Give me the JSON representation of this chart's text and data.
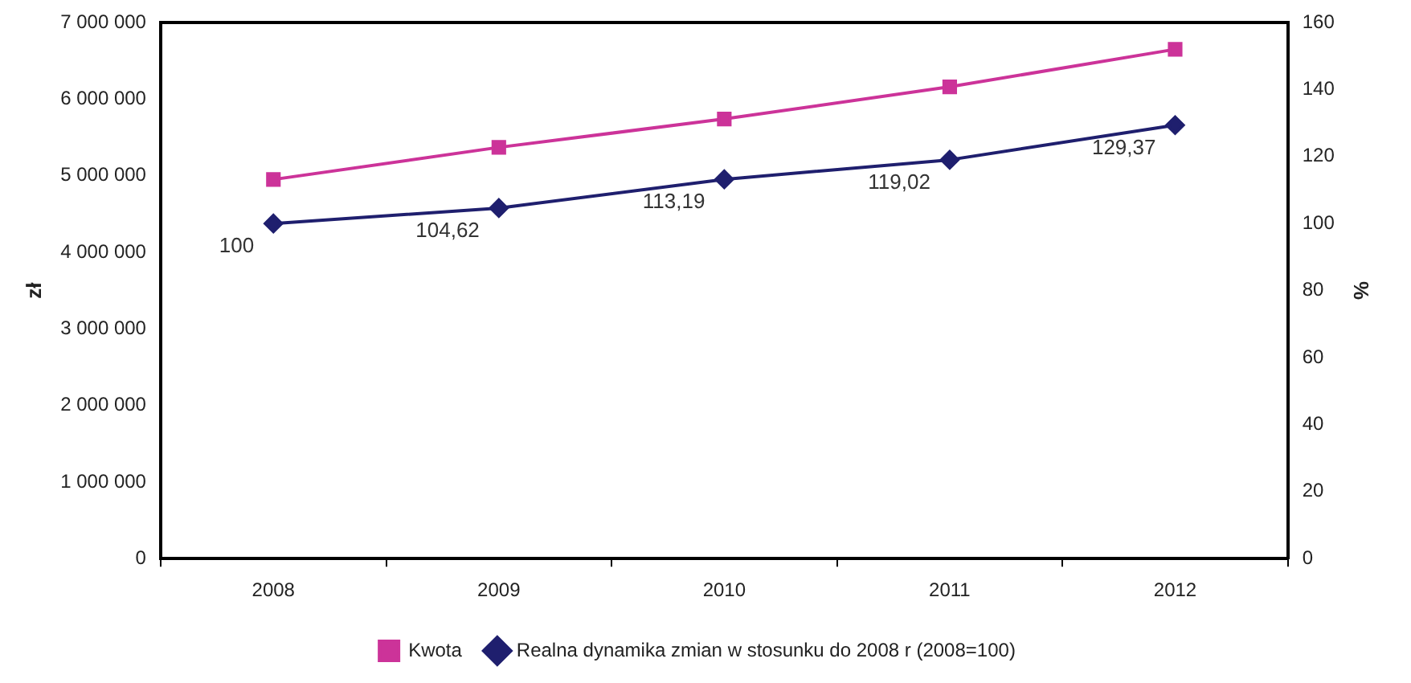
{
  "chart_data": {
    "type": "line",
    "categories": [
      "2008",
      "2009",
      "2010",
      "2011",
      "2012"
    ],
    "ylabel": "zł",
    "y2label": "%",
    "series": [
      {
        "name": "Kwota",
        "color": "#cc3399",
        "marker": "square",
        "values": [
          4950000,
          5370000,
          5740000,
          6160000,
          6650000
        ]
      },
      {
        "name": "Realna dynamika zmian w stosunku do 2008 r (2008=100)",
        "color": "#1f1f6e",
        "marker": "diamond",
        "axis": "y2",
        "values": [
          100,
          104.62,
          113.19,
          119.02,
          129.37
        ],
        "value_labels": [
          "100",
          "104,62",
          "113,19",
          "119,02",
          "129,37"
        ]
      }
    ],
    "ylim": [
      0,
      7000000
    ],
    "yticks": [
      {
        "value": 0,
        "label": "0"
      },
      {
        "value": 1000000,
        "label": "1 000 000"
      },
      {
        "value": 2000000,
        "label": "2 000 000"
      },
      {
        "value": 3000000,
        "label": "3 000 000"
      },
      {
        "value": 4000000,
        "label": "4 000 000"
      },
      {
        "value": 5000000,
        "label": "5 000 000"
      },
      {
        "value": 6000000,
        "label": "6 000 000"
      },
      {
        "value": 7000000,
        "label": "7 000 000"
      }
    ],
    "y2lim": [
      0,
      160
    ],
    "y2ticks": [
      0,
      20,
      40,
      60,
      80,
      100,
      120,
      140,
      160
    ],
    "grid": false,
    "legend": "bottom"
  }
}
